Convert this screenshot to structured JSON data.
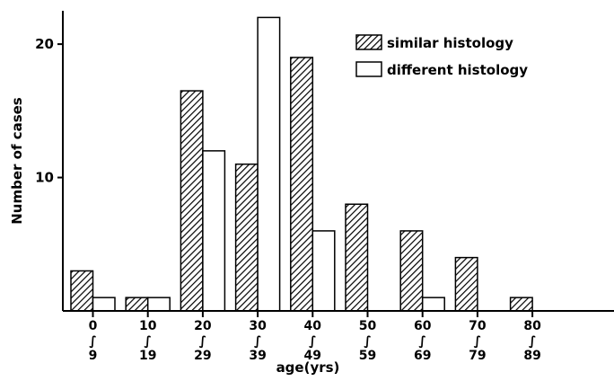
{
  "chart_data": {
    "type": "bar",
    "categories": [
      [
        "0",
        "∫",
        "9"
      ],
      [
        "10",
        "∫",
        "19"
      ],
      [
        "20",
        "∫",
        "29"
      ],
      [
        "30",
        "∫",
        "39"
      ],
      [
        "40",
        "∫",
        "49"
      ],
      [
        "50",
        "∫",
        "59"
      ],
      [
        "60",
        "∫",
        "69"
      ],
      [
        "70",
        "∫",
        "79"
      ],
      [
        "80",
        "∫",
        "89"
      ]
    ],
    "series": [
      {
        "name": "similar histology",
        "values": [
          3,
          1,
          16.5,
          11,
          19,
          8,
          6,
          4,
          1
        ],
        "fill": "hatched"
      },
      {
        "name": "different histology",
        "values": [
          1,
          1,
          12,
          22,
          6,
          0,
          1,
          0,
          0
        ],
        "fill": "white"
      }
    ],
    "xlabel": "age(yrs)",
    "ylabel": "Number of cases",
    "ylim": [
      0,
      22.5
    ],
    "yticks": [
      10,
      20
    ],
    "grid": false,
    "legend_position": "top-right",
    "colors": {
      "stroke": "#000000",
      "background": "#ffffff",
      "open_fill": "#ffffff"
    }
  }
}
